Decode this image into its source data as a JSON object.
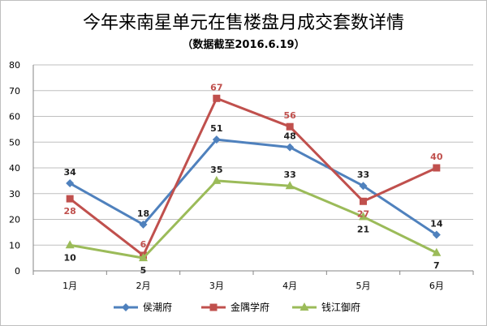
{
  "chart_data": {
    "type": "line",
    "title": "今年来南星单元在售楼盘月成交套数详情",
    "subtitle": "（数据截至2016.6.19）",
    "categories": [
      "1月",
      "2月",
      "3月",
      "4月",
      "5月",
      "6月"
    ],
    "ylim": [
      0,
      80
    ],
    "yticks": [
      "0",
      "10",
      "20",
      "30",
      "40",
      "50",
      "60",
      "70",
      "80"
    ],
    "grid": true,
    "legend_position": "bottom",
    "series": [
      {
        "name": "侯潮府",
        "values": [
          34,
          18,
          51,
          48,
          33,
          14
        ],
        "color": "#4f81bd",
        "label_color": "#1f1f1f",
        "marker": "diamond"
      },
      {
        "name": "金隅学府",
        "values": [
          28,
          6,
          67,
          56,
          27,
          40
        ],
        "color": "#c0504d",
        "label_color": "#c0504d",
        "marker": "square"
      },
      {
        "name": "钱江御府",
        "values": [
          10,
          5,
          35,
          33,
          21,
          7
        ],
        "color": "#9bbb59",
        "label_color": "#1f1f1f",
        "marker": "triangle"
      }
    ]
  }
}
